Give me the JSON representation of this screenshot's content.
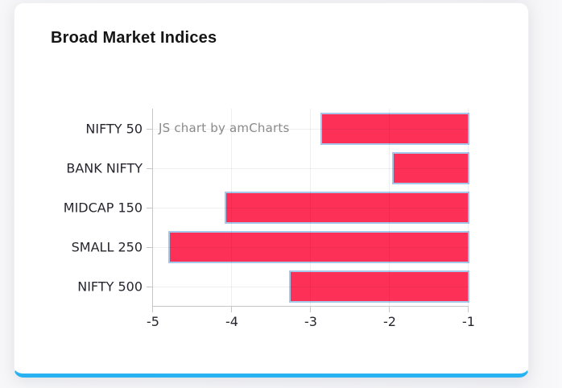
{
  "card": {
    "title": "Broad Market Indices"
  },
  "watermark": {
    "label": "JS chart by amCharts"
  },
  "colors": {
    "bar_fill": "#fd3058",
    "bar_stroke": "#a5c8ea",
    "accent": "#29b2f2",
    "axis_line": "#c6c6c6",
    "grid_line": "rgba(30,30,40,0.07)",
    "label": "#26262e",
    "watermark": "#8a8a8a",
    "card_bg": "#ffffff",
    "page_bg": "#f4f4f6",
    "title": "#151515"
  },
  "chart_data": {
    "type": "bar",
    "orientation": "horizontal",
    "title": "Broad Market Indices",
    "categories": [
      "NIFTY 50",
      "BANK NIFTY",
      "MIDCAP 150",
      "SMALL 250",
      "NIFTY 500"
    ],
    "values": [
      -2.88,
      -1.97,
      -4.09,
      -4.81,
      -3.28
    ],
    "bars_anchored_at": -1,
    "x_ticks": [
      -5,
      -4,
      -3,
      -2,
      -1
    ],
    "xlim": [
      -5,
      -1
    ],
    "xlabel": "",
    "ylabel": "",
    "grid": true,
    "legend": false
  }
}
